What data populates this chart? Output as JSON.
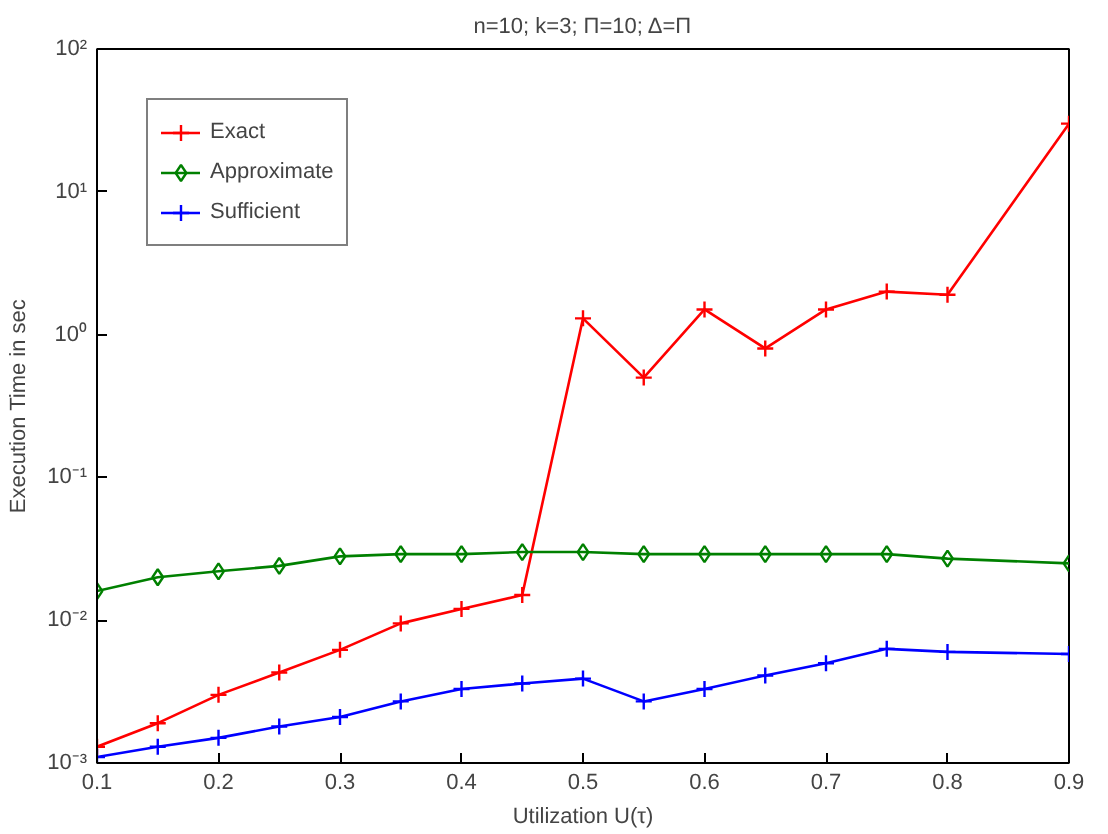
{
  "chart_data": {
    "type": "line",
    "title": "n=10; k=3; Π=10; Δ=Π",
    "xlabel": "Utilization U(τ)",
    "ylabel": "Execution Time in sec",
    "x": [
      0.1,
      0.15,
      0.2,
      0.25,
      0.3,
      0.35,
      0.4,
      0.45,
      0.5,
      0.55,
      0.6,
      0.65,
      0.7,
      0.75,
      0.8,
      0.9
    ],
    "series": [
      {
        "name": "Exact",
        "color": "#ff0000",
        "marker": "cross",
        "values": [
          0.0013,
          0.0019,
          0.003,
          0.0043,
          0.0062,
          0.0095,
          0.012,
          0.015,
          1.3,
          0.5,
          1.5,
          0.8,
          1.5,
          2.0,
          1.9,
          30
        ]
      },
      {
        "name": "Approximate",
        "color": "#008000",
        "marker": "diamond",
        "values": [
          0.016,
          0.02,
          0.022,
          0.024,
          0.028,
          0.029,
          0.029,
          0.03,
          0.03,
          0.029,
          0.029,
          0.029,
          0.029,
          0.029,
          0.027,
          0.025
        ]
      },
      {
        "name": "Sufficient",
        "color": "#0000ff",
        "marker": "cross",
        "values": [
          0.0011,
          0.0013,
          0.0015,
          0.0018,
          0.0021,
          0.0027,
          0.0033,
          0.0036,
          0.0039,
          0.0027,
          0.0033,
          0.0041,
          0.005,
          0.0063,
          0.006,
          0.0058
        ]
      }
    ],
    "log": "y",
    "xlim": [
      0.1,
      0.9
    ],
    "ylim": [
      0.001,
      100
    ],
    "xticks": [
      0.1,
      0.2,
      0.3,
      0.4,
      0.5,
      0.6,
      0.7,
      0.8,
      0.9
    ],
    "yticks": [
      {
        "value": 0.001,
        "label": "10⁻³"
      },
      {
        "value": 0.01,
        "label": "10⁻²"
      },
      {
        "value": 0.1,
        "label": "10⁻¹"
      },
      {
        "value": 1,
        "label": "10⁰"
      },
      {
        "value": 10,
        "label": "10¹"
      },
      {
        "value": 100,
        "label": "10²"
      }
    ],
    "grid": false,
    "legend": "top left",
    "line_style": "solid"
  }
}
